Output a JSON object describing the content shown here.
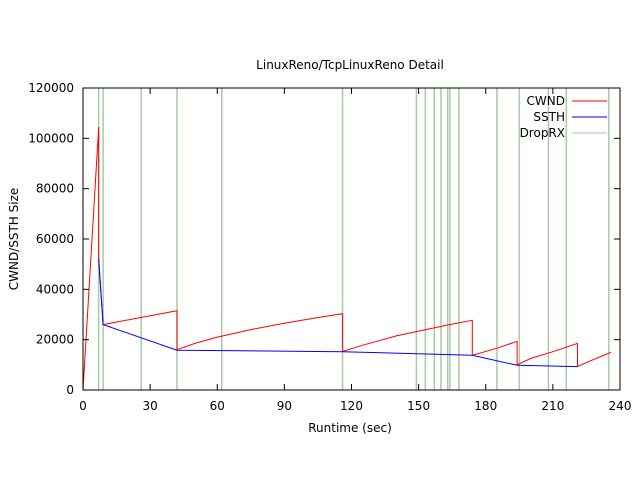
{
  "chart_data": {
    "type": "line",
    "title": "LinuxReno/TcpLinuxReno Detail",
    "xlabel": "Runtime (sec)",
    "ylabel": "CWND/SSTH Size",
    "xlim": [
      0,
      240
    ],
    "ylim": [
      0,
      120000
    ],
    "xticks": [
      0,
      30,
      60,
      90,
      120,
      150,
      180,
      210,
      240
    ],
    "yticks": [
      0,
      20000,
      40000,
      60000,
      80000,
      100000,
      120000
    ],
    "grid": false,
    "legend_position": "top-right",
    "series": [
      {
        "name": "CWND",
        "color": "#ff0000",
        "points": [
          [
            0,
            0
          ],
          [
            7,
            104500
          ],
          [
            7,
            52000
          ],
          [
            9,
            26000
          ],
          [
            42,
            31500
          ],
          [
            42,
            16000
          ],
          [
            50,
            18500
          ],
          [
            60,
            21000
          ],
          [
            75,
            24000
          ],
          [
            90,
            26500
          ],
          [
            105,
            28800
          ],
          [
            116,
            30300
          ],
          [
            116,
            15300
          ],
          [
            125,
            17800
          ],
          [
            140,
            21500
          ],
          [
            155,
            24300
          ],
          [
            165,
            26200
          ],
          [
            174,
            27700
          ],
          [
            174,
            13800
          ],
          [
            185,
            16600
          ],
          [
            194,
            19300
          ],
          [
            194,
            10000
          ],
          [
            200,
            12500
          ],
          [
            210,
            15200
          ],
          [
            221,
            18500
          ],
          [
            221,
            9300
          ],
          [
            226,
            11300
          ],
          [
            232,
            13500
          ],
          [
            236,
            15000
          ]
        ]
      },
      {
        "name": "SSTH",
        "color": "#0000ff",
        "points": [
          [
            7,
            52000
          ],
          [
            9,
            26000
          ],
          [
            42,
            15800
          ],
          [
            116,
            15200
          ],
          [
            174,
            13800
          ],
          [
            194,
            9800
          ],
          [
            221,
            9300
          ]
        ]
      },
      {
        "name": "DropRX",
        "color": "#a8caa5",
        "x": [
          7,
          9,
          26,
          42,
          62,
          116,
          149,
          153,
          157,
          160,
          163,
          164,
          168,
          185,
          195,
          208,
          216,
          235
        ]
      }
    ]
  }
}
